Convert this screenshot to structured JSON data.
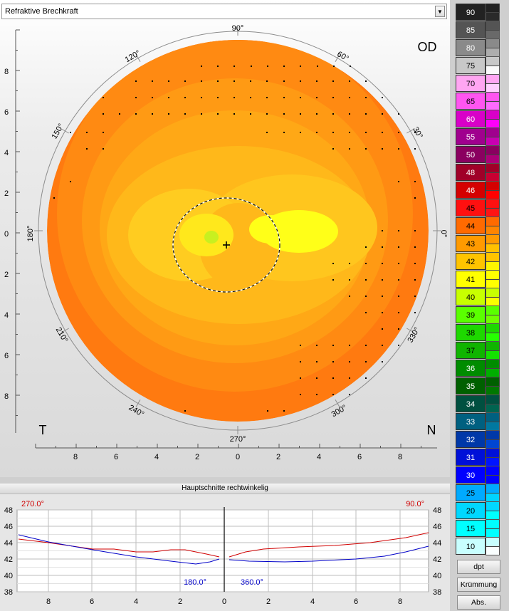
{
  "window": {
    "dropdown_value": "Refraktive Brechkraft",
    "dropdown_arrow": "▼"
  },
  "map": {
    "eye_label": "OD",
    "temporal_label": "T",
    "nasal_label": "N",
    "angle_labels": [
      "90°",
      "60°",
      "30°",
      "0°",
      "330°",
      "300°",
      "270°",
      "240°",
      "210°",
      "180°",
      "150°",
      "120°"
    ],
    "y_ticks": [
      "8",
      "6",
      "4",
      "2",
      "0",
      "2",
      "4",
      "6",
      "8"
    ],
    "x_ticks": [
      "8",
      "6",
      "4",
      "2",
      "0",
      "2",
      "4",
      "6",
      "8"
    ]
  },
  "scale": {
    "items": [
      {
        "label": "90",
        "color": "#222222"
      },
      {
        "label": "85",
        "color": "#545454"
      },
      {
        "label": "80",
        "color": "#8a8a8a"
      },
      {
        "label": "75",
        "color": "#c8c8c8"
      },
      {
        "label": "70",
        "color": "#ffa6f2"
      },
      {
        "label": "65",
        "color": "#ff55f0"
      },
      {
        "label": "60",
        "color": "#d800c8"
      },
      {
        "label": "55",
        "color": "#a0008e"
      },
      {
        "label": "50",
        "color": "#8a0060"
      },
      {
        "label": "48",
        "color": "#a00028"
      },
      {
        "label": "46",
        "color": "#d40000"
      },
      {
        "label": "45",
        "color": "#ff1010"
      },
      {
        "label": "44",
        "color": "#ff6a00"
      },
      {
        "label": "43",
        "color": "#ff9a00"
      },
      {
        "label": "42",
        "color": "#ffc400"
      },
      {
        "label": "41",
        "color": "#ffff00"
      },
      {
        "label": "40",
        "color": "#c8ff00"
      },
      {
        "label": "39",
        "color": "#5aff00"
      },
      {
        "label": "38",
        "color": "#1ed800"
      },
      {
        "label": "37",
        "color": "#10b400"
      },
      {
        "label": "36",
        "color": "#008c00"
      },
      {
        "label": "35",
        "color": "#006000"
      },
      {
        "label": "34",
        "color": "#005040"
      },
      {
        "label": "33",
        "color": "#006080"
      },
      {
        "label": "32",
        "color": "#0038a8"
      },
      {
        "label": "31",
        "color": "#0010d8"
      },
      {
        "label": "30",
        "color": "#0000ff"
      },
      {
        "label": "25",
        "color": "#00aaff"
      },
      {
        "label": "20",
        "color": "#00d8ff"
      },
      {
        "label": "15",
        "color": "#00ffff"
      },
      {
        "label": "10",
        "color": "#c8ffff"
      }
    ]
  },
  "buttons": {
    "dpt": "dpt",
    "kruemmung": "Krümmung",
    "abs": "Abs."
  },
  "profile": {
    "title": "Hauptschnitte rechtwinkelig",
    "label_270": "270.0°",
    "label_90": "90.0°",
    "label_180": "180.0°",
    "label_360": "360.0°",
    "y_ticks": [
      "48",
      "46",
      "44",
      "42",
      "40",
      "38"
    ],
    "x_ticks": [
      "8",
      "6",
      "4",
      "2",
      "0",
      "2",
      "4",
      "6",
      "8"
    ],
    "red_color": "#d00000",
    "blue_color": "#0000c8"
  }
}
